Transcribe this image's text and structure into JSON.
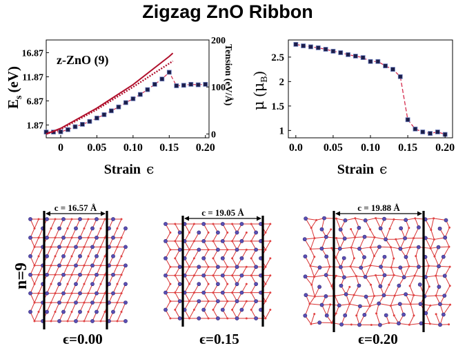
{
  "title": "Zigzag ZnO Ribbon",
  "chart_data": [
    {
      "type": "line",
      "name": "energy-tension",
      "annotation": "z-ZnO (9)",
      "xlabel": "Strain",
      "xlabel_symbol": "ϵ",
      "ylabel_main": "E",
      "ylabel_sub": "s",
      "ylabel_unit": "(eV)",
      "ylabel_right": "Tension (eV/Å)",
      "xlim": [
        -0.02,
        0.205
      ],
      "ylim": [
        -0.8,
        19.5
      ],
      "y2lim": [
        -8.2,
        200
      ],
      "x_ticks": [
        0,
        0.05,
        0.1,
        0.15,
        0.2
      ],
      "x_tick_labels": [
        "0",
        "0.05",
        "0.10",
        "0.15",
        "0.20"
      ],
      "y_ticks": [
        1.87,
        6.87,
        11.87,
        16.87
      ],
      "y_tick_labels": [
        "1.87",
        "6.87",
        "11.87",
        "16.87"
      ],
      "y2_ticks": [
        0,
        100,
        200
      ],
      "y2_tick_labels": [
        "0",
        "100",
        "200"
      ],
      "series": [
        {
          "name": "Es",
          "axis": "left",
          "color": "#d4294b",
          "marker": "square",
          "x": [
            -0.02,
            -0.01,
            0.0,
            0.01,
            0.02,
            0.03,
            0.04,
            0.05,
            0.06,
            0.07,
            0.08,
            0.09,
            0.1,
            0.11,
            0.12,
            0.13,
            0.14,
            0.15,
            0.16,
            0.17,
            0.18,
            0.19,
            0.2
          ],
          "y": [
            0.4,
            0.4,
            0.45,
            0.9,
            1.5,
            2.0,
            2.6,
            3.3,
            4.0,
            4.8,
            5.6,
            6.5,
            7.3,
            8.2,
            9.2,
            10.3,
            11.4,
            12.8,
            10.0,
            10.1,
            10.3,
            10.2,
            10.3
          ]
        },
        {
          "name": "Tension (fit)",
          "axis": "right",
          "color": "#b0102c",
          "style": "solid",
          "x": [
            -0.02,
            0.0,
            0.05,
            0.1,
            0.15,
            0.155
          ],
          "y": [
            0,
            12,
            55,
            105,
            165,
            172
          ]
        },
        {
          "name": "Tension",
          "axis": "right",
          "color": "#b0102c",
          "style": "dotted",
          "x": [
            -0.02,
            0.0,
            0.05,
            0.1,
            0.15,
            0.155
          ],
          "y": [
            0,
            10,
            52,
            100,
            150,
            155
          ]
        }
      ]
    },
    {
      "type": "line",
      "name": "magnetic-moment",
      "xlabel": "Strain",
      "xlabel_symbol": "ϵ",
      "ylabel_main": "μ",
      "ylabel_sub": "B",
      "xlim": [
        -0.01,
        0.21
      ],
      "ylim": [
        0.85,
        2.85
      ],
      "x_ticks": [
        0,
        0.05,
        0.1,
        0.15,
        0.2
      ],
      "x_tick_labels": [
        "0.0",
        "0.05",
        "0.10",
        "0.15",
        "0.20"
      ],
      "y_ticks": [
        1,
        1.5,
        2,
        2.5
      ],
      "y_tick_labels": [
        "1",
        "1.5",
        "2",
        "2.5"
      ],
      "series": [
        {
          "name": "mu",
          "color": "#d4294b",
          "marker": "square",
          "x": [
            0.0,
            0.01,
            0.02,
            0.03,
            0.04,
            0.05,
            0.06,
            0.07,
            0.08,
            0.09,
            0.1,
            0.11,
            0.12,
            0.13,
            0.14,
            0.15,
            0.16,
            0.17,
            0.18,
            0.19,
            0.2
          ],
          "y": [
            2.76,
            2.73,
            2.71,
            2.69,
            2.66,
            2.62,
            2.59,
            2.55,
            2.52,
            2.49,
            2.41,
            2.41,
            2.32,
            2.25,
            2.1,
            1.22,
            1.03,
            0.97,
            0.94,
            0.97,
            0.92
          ]
        }
      ]
    }
  ],
  "structures": {
    "row_label": "n=9",
    "panels": [
      {
        "c_label": "c = 16.57 Å",
        "strain_label": "ϵ=0.00",
        "strain": 0.0
      },
      {
        "c_label": "c = 19.05 Å",
        "strain_label": "ϵ=0.15",
        "strain": 0.15
      },
      {
        "c_label": "c = 19.88 Å",
        "strain_label": "ϵ=0.20",
        "strain": 0.2
      }
    ]
  }
}
